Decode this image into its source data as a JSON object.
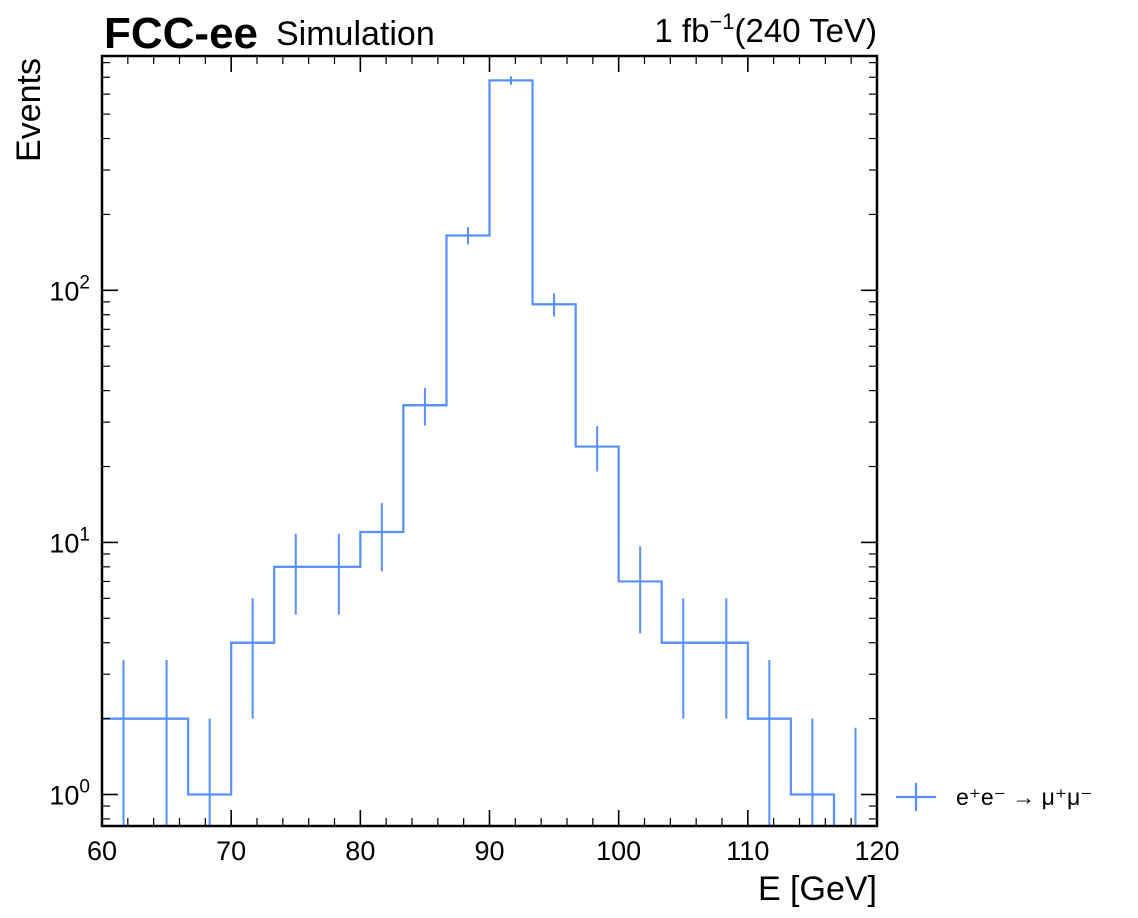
{
  "chart_data": {
    "type": "histogram",
    "experiment": "FCC-ee",
    "status": "Simulation",
    "lumi_text": "1 fb",
    "lumi_exponent": "−1",
    "energy_text": "(240 TeV)",
    "xlabel": "E [GeV]",
    "ylabel": "Events",
    "xlim": [
      60,
      120
    ],
    "ylim": [
      0.75,
      850
    ],
    "yscale": "log",
    "bin_edges": [
      60,
      63.33,
      66.67,
      70,
      73.33,
      76.67,
      80,
      83.33,
      86.67,
      90,
      93.33,
      96.67,
      100,
      103.33,
      106.67,
      110,
      113.33,
      116.67,
      120
    ],
    "series": [
      {
        "name": "e⁺e⁻ → μ⁺μ⁻",
        "color": "#5790fc",
        "values": [
          2,
          2,
          1,
          4,
          8,
          8,
          11,
          35,
          165,
          680,
          88,
          24,
          7,
          4,
          4,
          2,
          1,
          0
        ]
      }
    ],
    "x_ticks": [
      "60",
      "70",
      "80",
      "90",
      "100",
      "110",
      "120"
    ],
    "y_ticks": [
      {
        "base": "10",
        "exp": "0",
        "value": 1
      },
      {
        "base": "10",
        "exp": "1",
        "value": 10
      },
      {
        "base": "10",
        "exp": "2",
        "value": 100
      }
    ],
    "legend_position": "outside-right-bottom",
    "grid": false
  }
}
